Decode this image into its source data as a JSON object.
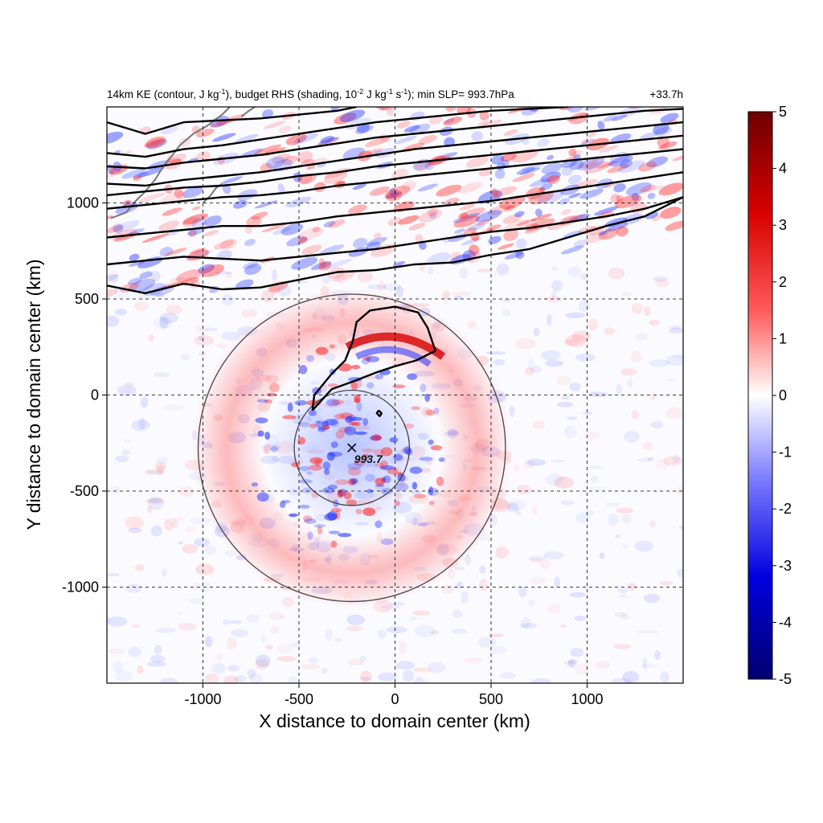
{
  "chart_data": {
    "type": "heatmap",
    "title_parts": {
      "a": "14km KE (contour, J kg",
      "a_sup": "-1",
      "b": "), budget RHS (shading, 10",
      "b_sup": "-2",
      "c": " J kg",
      "c_sup": "-1",
      "d": " s",
      "d_sup": "-1",
      "e": "); min SLP= 993.7hPa"
    },
    "time_label": "+33.7h",
    "xlabel": "X distance to domain center (km)",
    "ylabel": "Y distance to domain center (km)",
    "xlim": [
      -1500,
      1500
    ],
    "ylim": [
      -1500,
      1500
    ],
    "x_ticks": [
      -1000,
      -500,
      0,
      500,
      1000
    ],
    "y_ticks": [
      1000,
      500,
      0,
      -500,
      -1000
    ],
    "grid": true,
    "colorbar": {
      "range": [
        -5,
        5
      ],
      "ticks": [
        5,
        4,
        3,
        2,
        1,
        0,
        -1,
        -2,
        -3,
        -4,
        -5
      ],
      "colors": [
        "#00007a",
        "#0000ff",
        "#ffffff",
        "#ff0000",
        "#7a0000"
      ]
    },
    "storm_center": {
      "x": -225,
      "y": -275,
      "label": "993.7"
    },
    "range_circles_km": [
      300,
      800
    ],
    "ke_contours": [
      {
        "name": "c1",
        "points": [
          [
            -1500,
            1420
          ],
          [
            -1300,
            1360
          ],
          [
            -1100,
            1420
          ],
          [
            -900,
            1430
          ],
          [
            -700,
            1440
          ],
          [
            -500,
            1460
          ],
          [
            -300,
            1480
          ],
          [
            -200,
            1500
          ]
        ]
      },
      {
        "name": "c2",
        "points": [
          [
            -1500,
            1260
          ],
          [
            -1300,
            1240
          ],
          [
            -1100,
            1280
          ],
          [
            -900,
            1300
          ],
          [
            -700,
            1330
          ],
          [
            -500,
            1360
          ],
          [
            -300,
            1390
          ],
          [
            -100,
            1420
          ],
          [
            100,
            1440
          ],
          [
            300,
            1460
          ],
          [
            500,
            1480
          ],
          [
            700,
            1490
          ],
          [
            900,
            1500
          ]
        ]
      },
      {
        "name": "c3",
        "points": [
          [
            -1500,
            1190
          ],
          [
            -1300,
            1180
          ],
          [
            -1100,
            1210
          ],
          [
            -900,
            1230
          ],
          [
            -700,
            1250
          ],
          [
            -500,
            1280
          ],
          [
            -300,
            1310
          ],
          [
            -100,
            1340
          ],
          [
            100,
            1360
          ],
          [
            300,
            1380
          ],
          [
            500,
            1400
          ],
          [
            700,
            1420
          ],
          [
            900,
            1440
          ],
          [
            1100,
            1460
          ],
          [
            1300,
            1480
          ],
          [
            1500,
            1490
          ]
        ]
      },
      {
        "name": "c4",
        "points": [
          [
            -1500,
            1100
          ],
          [
            -1300,
            1090
          ],
          [
            -1100,
            1120
          ],
          [
            -900,
            1140
          ],
          [
            -700,
            1160
          ],
          [
            -500,
            1190
          ],
          [
            -300,
            1220
          ],
          [
            -100,
            1250
          ],
          [
            100,
            1280
          ],
          [
            300,
            1300
          ],
          [
            500,
            1320
          ],
          [
            700,
            1340
          ],
          [
            900,
            1360
          ],
          [
            1100,
            1380
          ],
          [
            1300,
            1400
          ],
          [
            1500,
            1420
          ]
        ]
      },
      {
        "name": "c5",
        "points": [
          [
            -1500,
            1040
          ],
          [
            -1300,
            1060
          ],
          [
            -1100,
            1080
          ],
          [
            -900,
            1090
          ],
          [
            -700,
            1110
          ],
          [
            -500,
            1140
          ],
          [
            -300,
            1160
          ],
          [
            -100,
            1190
          ],
          [
            100,
            1210
          ],
          [
            300,
            1230
          ],
          [
            500,
            1250
          ],
          [
            700,
            1270
          ],
          [
            900,
            1290
          ],
          [
            1100,
            1310
          ],
          [
            1300,
            1330
          ],
          [
            1500,
            1350
          ]
        ]
      },
      {
        "name": "c6",
        "points": [
          [
            -1500,
            970
          ],
          [
            -1300,
            990
          ],
          [
            -1100,
            1010
          ],
          [
            -900,
            1030
          ],
          [
            -700,
            1040
          ],
          [
            -500,
            1060
          ],
          [
            -300,
            1090
          ],
          [
            -100,
            1110
          ],
          [
            100,
            1140
          ],
          [
            300,
            1160
          ],
          [
            500,
            1180
          ],
          [
            700,
            1200
          ],
          [
            900,
            1220
          ],
          [
            1100,
            1240
          ],
          [
            1300,
            1260
          ],
          [
            1500,
            1280
          ]
        ]
      },
      {
        "name": "c7",
        "points": [
          [
            -1500,
            820
          ],
          [
            -1300,
            840
          ],
          [
            -1100,
            860
          ],
          [
            -900,
            880
          ],
          [
            -700,
            880
          ],
          [
            -500,
            900
          ],
          [
            -300,
            930
          ],
          [
            -100,
            950
          ],
          [
            100,
            970
          ],
          [
            300,
            990
          ],
          [
            500,
            1010
          ],
          [
            700,
            1040
          ],
          [
            900,
            1070
          ],
          [
            1100,
            1100
          ],
          [
            1300,
            1130
          ],
          [
            1500,
            1160
          ]
        ]
      },
      {
        "name": "c8",
        "points": [
          [
            -1500,
            680
          ],
          [
            -1300,
            700
          ],
          [
            -1100,
            720
          ],
          [
            -900,
            710
          ],
          [
            -700,
            700
          ],
          [
            -500,
            720
          ],
          [
            -300,
            740
          ],
          [
            -100,
            760
          ],
          [
            100,
            790
          ],
          [
            300,
            820
          ],
          [
            500,
            850
          ],
          [
            700,
            870
          ],
          [
            900,
            900
          ],
          [
            1100,
            930
          ],
          [
            1300,
            970
          ],
          [
            1500,
            1030
          ]
        ]
      },
      {
        "name": "c9",
        "points": [
          [
            -1500,
            570
          ],
          [
            -1300,
            530
          ],
          [
            -1100,
            580
          ],
          [
            -900,
            550
          ],
          [
            -700,
            560
          ],
          [
            -500,
            600
          ],
          [
            -300,
            640
          ],
          [
            -100,
            650
          ],
          [
            100,
            680
          ],
          [
            300,
            690
          ],
          [
            500,
            730
          ],
          [
            700,
            760
          ],
          [
            900,
            820
          ],
          [
            1100,
            880
          ],
          [
            1300,
            930
          ],
          [
            1500,
            1030
          ]
        ]
      },
      {
        "name": "c10",
        "points": [
          [
            -430,
            -80
          ],
          [
            -420,
            0
          ],
          [
            -330,
            110
          ],
          [
            -260,
            180
          ],
          [
            -220,
            280
          ],
          [
            -200,
            380
          ],
          [
            -130,
            440
          ],
          [
            0,
            460
          ],
          [
            120,
            430
          ],
          [
            170,
            350
          ],
          [
            210,
            230
          ],
          [
            110,
            180
          ],
          [
            0,
            150
          ],
          [
            -90,
            120
          ],
          [
            -220,
            70
          ],
          [
            -330,
            30
          ],
          [
            -430,
            -80
          ]
        ]
      },
      {
        "name": "c11",
        "points": [
          [
            -85,
            -80
          ],
          [
            -70,
            -95
          ],
          [
            -80,
            -110
          ],
          [
            -95,
            -95
          ],
          [
            -85,
            -80
          ]
        ]
      }
    ]
  }
}
